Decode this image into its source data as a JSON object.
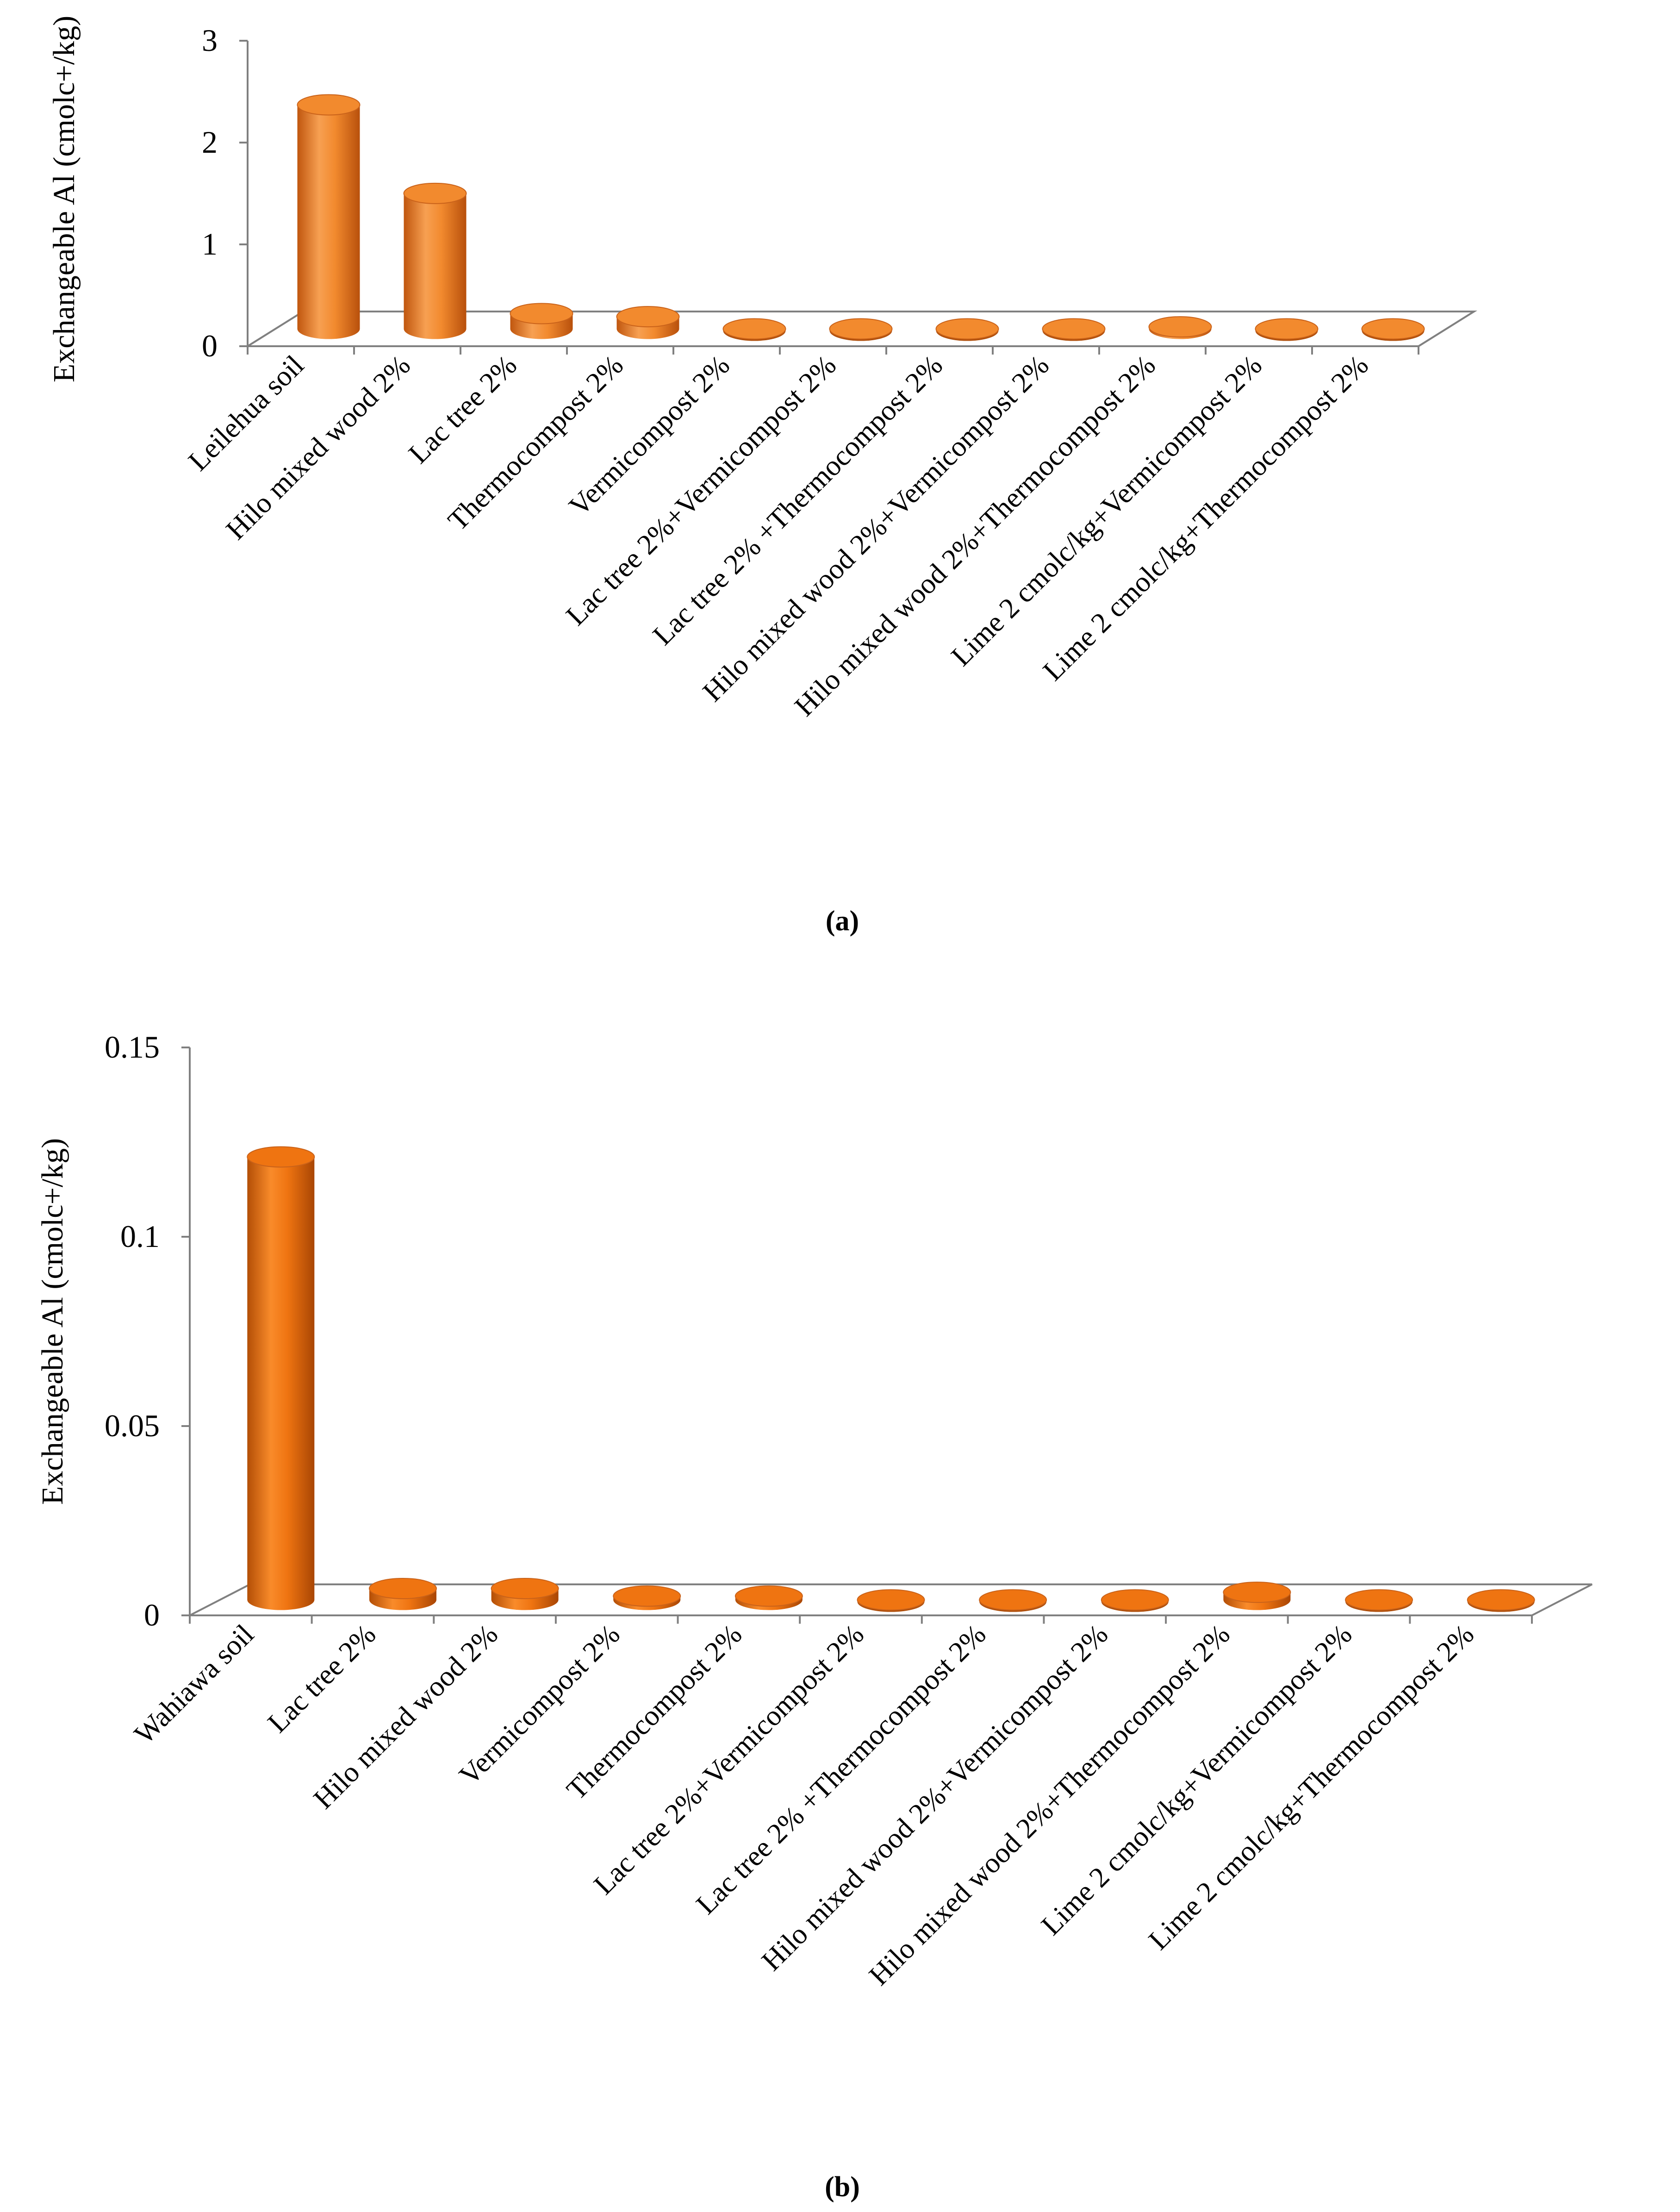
{
  "chart_data": [
    {
      "type": "bar",
      "style": "3d-cylinder",
      "panel_label": "(a)",
      "ylabel": "Exchangeable Al (cmolc+/kg)",
      "ylim": [
        0,
        3
      ],
      "yticks": [
        "0",
        "1",
        "2",
        "3"
      ],
      "yticks_values": [
        0,
        1,
        2,
        3
      ],
      "categories": [
        "Leilehua soil",
        "Hilo mixed wood 2%",
        "Lac tree 2%",
        "Thermocompost 2%",
        "Vermicompost 2%",
        "Lac tree 2%+Vermicompost 2%",
        "Lac tree 2% +Thermocompost 2%",
        "Hilo mixed wood 2%+Vermicompost 2%",
        "Hilo mixed wood 2%+Thermocompost 2%",
        "Lime 2 cmolc/kg+Vermicompost 2%",
        "Lime 2 cmolc/kg+Thermocompost 2%"
      ],
      "values": [
        2.2,
        1.33,
        0.15,
        0.12,
        0.0,
        0.0,
        0.0,
        0.0,
        0.02,
        0.0,
        0.0
      ],
      "bar_color": "#F28A2E"
    },
    {
      "type": "bar",
      "style": "3d-cylinder",
      "panel_label": "(b)",
      "ylabel": "Exchangeable Al (cmolc+/kg)",
      "ylim": [
        0,
        0.15
      ],
      "yticks": [
        "0",
        "0.05",
        "0.1",
        "0.15"
      ],
      "yticks_values": [
        0,
        0.05,
        0.1,
        0.15
      ],
      "categories": [
        "Wahiawa soil",
        "Lac tree 2%",
        "Hilo mixed wood 2%",
        "Vermicompost 2%",
        "Thermocompost 2%",
        "Lac tree 2%+Vermicompost 2%",
        "Lac tree 2% +Thermocompost 2%",
        "Hilo mixed wood 2%+Vermicompost 2%",
        "Hilo mixed wood 2%+Thermocompost 2%",
        "Lime 2 cmolc/kg+Vermicompost 2%",
        "Lime 2 cmolc/kg+Thermocompost 2%"
      ],
      "values": [
        0.117,
        0.003,
        0.003,
        0.001,
        0.001,
        0.0,
        0.0,
        0.0,
        0.002,
        0.0,
        0.0
      ],
      "bar_color": "#EF7411"
    }
  ]
}
